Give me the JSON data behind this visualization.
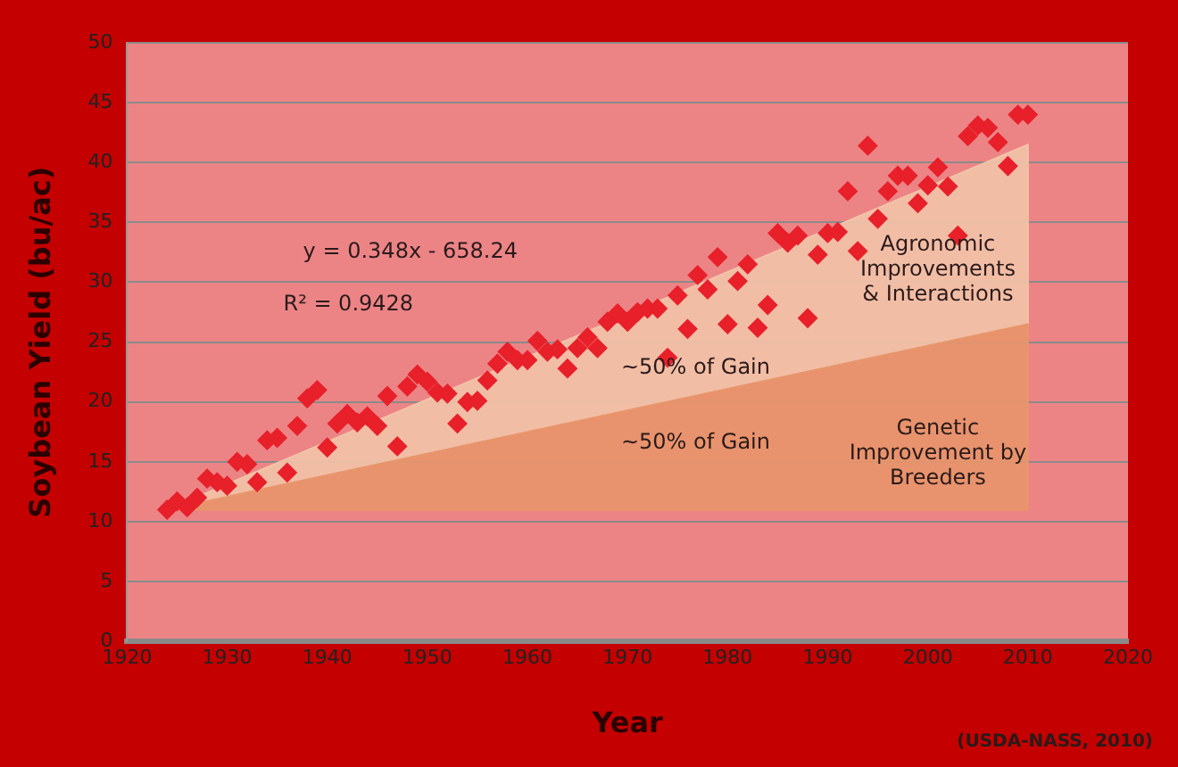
{
  "chart_data": {
    "type": "scatter",
    "xlabel": "Year",
    "ylabel": "Soybean Yield (bu/ac)",
    "xlim": [
      1920,
      2020
    ],
    "xticks": [
      1920,
      1930,
      1940,
      1950,
      1960,
      1970,
      1980,
      1990,
      2000,
      2010,
      2020
    ],
    "ylim": [
      0,
      50
    ],
    "yticks": [
      0,
      5,
      10,
      15,
      20,
      25,
      30,
      35,
      40,
      45,
      50
    ],
    "grid": "y",
    "legend": false,
    "series": [
      {
        "name": "Genetic Improvement by Breeders",
        "type": "area",
        "color": "#e8956a",
        "x": [
          1924,
          2010,
          2010,
          1924
        ],
        "values": [
          11,
          26.5,
          11,
          11
        ]
      },
      {
        "name": "Agronomic Improvements & Interactions",
        "type": "area",
        "color": "#f3c3a8",
        "x": [
          1924,
          2010,
          2010,
          1924
        ],
        "values": [
          11,
          41.5,
          26.5,
          11
        ]
      },
      {
        "color": "#e8202a",
        "marker": "diamond",
        "x": [
          1924,
          1925,
          1926,
          1927,
          1928,
          1929,
          1930,
          1931,
          1932,
          1933,
          1934,
          1935,
          1936,
          1937,
          1938,
          1939,
          1940,
          1941,
          1942,
          1943,
          1944,
          1945,
          1946,
          1947,
          1948,
          1949,
          1950,
          1951,
          1952,
          1953,
          1954,
          1955,
          1956,
          1957,
          1958,
          1959,
          1960,
          1961,
          1962,
          1963,
          1964,
          1965,
          1966,
          1967,
          1968,
          1969,
          1970,
          1971,
          1972,
          1973,
          1974,
          1975,
          1976,
          1977,
          1978,
          1979,
          1980,
          1981,
          1982,
          1983,
          1984,
          1985,
          1986,
          1987,
          1988,
          1989,
          1990,
          1991,
          1992,
          1993,
          1994,
          1995,
          1996,
          1997,
          1998,
          1999,
          2000,
          2001,
          2002,
          2003,
          2004,
          2005,
          2006,
          2007,
          2008,
          2009,
          2010
        ],
        "values": [
          11,
          11.7,
          11.2,
          12,
          13.6,
          13.3,
          13,
          15,
          14.8,
          13.3,
          16.8,
          17,
          14.1,
          18,
          20.3,
          21,
          16.2,
          18.2,
          19,
          18.3,
          18.8,
          18,
          20.5,
          16.3,
          21.3,
          22.3,
          21.7,
          20.8,
          20.7,
          18.2,
          20,
          20.1,
          21.8,
          23.2,
          24.2,
          23.5,
          23.5,
          25.1,
          24.2,
          24.4,
          22.8,
          24.5,
          25.4,
          24.5,
          26.7,
          27.4,
          26.7,
          27.5,
          27.8,
          27.8,
          23.7,
          28.9,
          26.1,
          30.6,
          29.4,
          32.1,
          26.5,
          30.1,
          31.5,
          26.2,
          28.1,
          34.1,
          33.3,
          33.9,
          27,
          32.3,
          34.1,
          34.2,
          37.6,
          32.6,
          41.4,
          35.3,
          37.6,
          38.9,
          38.9,
          36.6,
          38.1,
          39.6,
          38,
          33.9,
          42.2,
          43.1,
          42.9,
          41.7,
          39.7,
          44,
          44
        ]
      }
    ],
    "annotations": [
      "y = 0.348x - 658.24",
      "R² = 0.9428",
      "~50% of Gain",
      "~50% of Gain",
      "(USDA-NASS, 2010)"
    ]
  }
}
